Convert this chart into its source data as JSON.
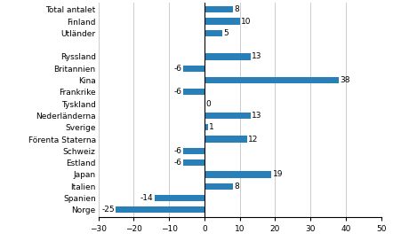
{
  "categories": [
    "Norge",
    "Spanien",
    "Italien",
    "Japan",
    "Estland",
    "Schweiz",
    "Förenta Staterna",
    "Sverige",
    "Nederländerna",
    "Tyskland",
    "Frankrike",
    "Kina",
    "Britannien",
    "Ryssland",
    "",
    "Utländer",
    "Finland",
    "Total antalet"
  ],
  "values": [
    -25,
    -14,
    8,
    19,
    -6,
    -6,
    12,
    1,
    13,
    0,
    -6,
    38,
    -6,
    13,
    null,
    5,
    10,
    8
  ],
  "bar_color": "#2980b9",
  "xlim": [
    -30,
    50
  ],
  "xticks": [
    -30,
    -20,
    -10,
    0,
    10,
    20,
    30,
    40,
    50
  ],
  "label_fontsize": 6.5,
  "tick_fontsize": 6.5,
  "value_fontsize": 6.5,
  "bar_height": 0.55,
  "grid_color": "#cccccc",
  "figure_bg": "#ffffff"
}
